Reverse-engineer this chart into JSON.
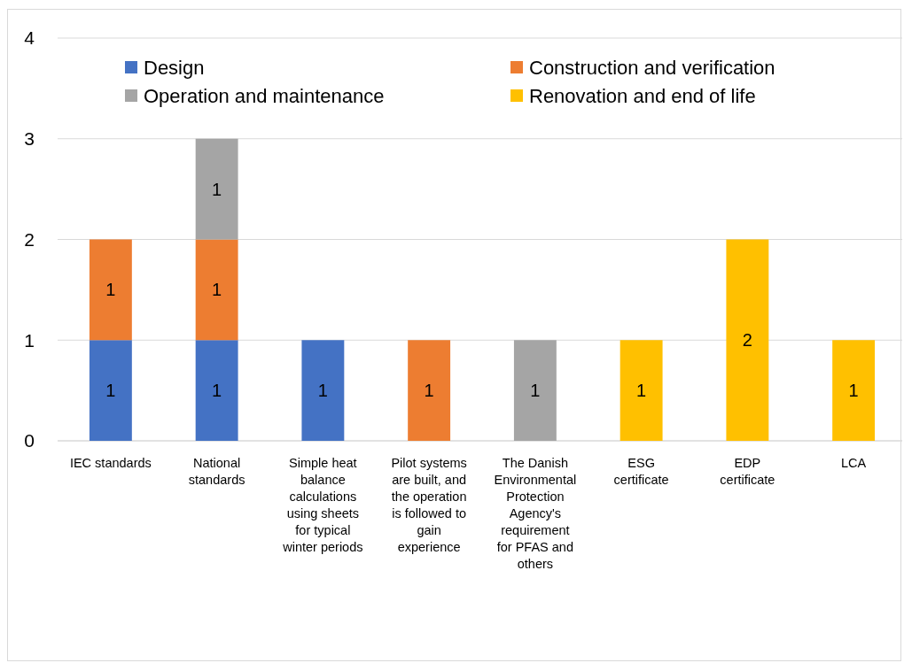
{
  "chart_data": {
    "type": "bar",
    "stacked": true,
    "categories": [
      "IEC standards",
      "National standards",
      "Simple heat balance calculations using sheets for typical winter periods",
      "Pilot systems are built, and the operation is followed to gain experience",
      "The Danish Environmental Protection Agency's requirement for PFAS and others",
      "ESG certificate",
      "EDP certificate",
      "LCA"
    ],
    "series": [
      {
        "name": "Design",
        "color": "#4472c4",
        "values": [
          1,
          1,
          1,
          null,
          null,
          null,
          null,
          null
        ]
      },
      {
        "name": "Construction and verification",
        "color": "#ed7d31",
        "values": [
          1,
          1,
          null,
          1,
          null,
          null,
          null,
          null
        ]
      },
      {
        "name": "Operation and maintenance",
        "color": "#a5a5a5",
        "values": [
          null,
          1,
          null,
          null,
          1,
          null,
          null,
          null
        ]
      },
      {
        "name": "Renovation and end of life",
        "color": "#ffc000",
        "values": [
          null,
          null,
          null,
          null,
          null,
          1,
          2,
          1
        ]
      }
    ],
    "ylim": [
      0,
      4
    ],
    "yticks": [
      0,
      1,
      2,
      3,
      4
    ],
    "grid": "y",
    "legend": "top",
    "data_labels": true
  }
}
